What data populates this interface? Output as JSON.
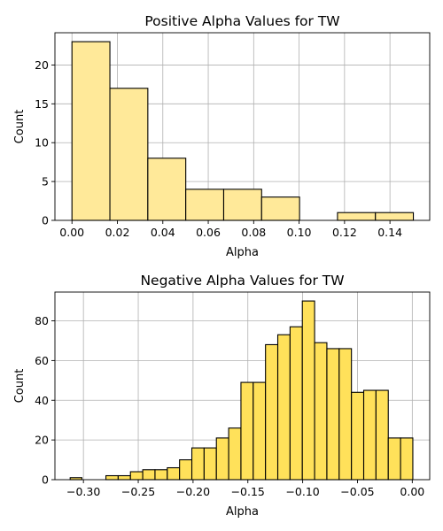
{
  "chart_data": [
    {
      "type": "bar",
      "title": "Positive Alpha Values for TW",
      "xlabel": "Alpha",
      "ylabel": "Count",
      "xlim": [
        -0.0075,
        0.1575
      ],
      "ylim": [
        0,
        24.15
      ],
      "xticks": [
        0.0,
        0.02,
        0.04,
        0.06,
        0.08,
        0.1,
        0.12,
        0.14
      ],
      "xtick_labels": [
        "0.00",
        "0.02",
        "0.04",
        "0.06",
        "0.08",
        "0.10",
        "0.12",
        "0.14"
      ],
      "yticks": [
        0,
        5,
        10,
        15,
        20
      ],
      "ytick_labels": [
        "0",
        "5",
        "10",
        "15",
        "20"
      ],
      "grid": true,
      "fill_color": "#ffe999",
      "bins": [
        {
          "x0": 0.0,
          "x1": 0.0167,
          "count": 23
        },
        {
          "x0": 0.0167,
          "x1": 0.0334,
          "count": 17
        },
        {
          "x0": 0.0334,
          "x1": 0.0501,
          "count": 8
        },
        {
          "x0": 0.0501,
          "x1": 0.0668,
          "count": 4
        },
        {
          "x0": 0.0668,
          "x1": 0.0835,
          "count": 4
        },
        {
          "x0": 0.0835,
          "x1": 0.1002,
          "count": 3
        },
        {
          "x0": 0.1002,
          "x1": 0.1169,
          "count": 0
        },
        {
          "x0": 0.1169,
          "x1": 0.1336,
          "count": 1
        },
        {
          "x0": 0.1336,
          "x1": 0.1503,
          "count": 1
        }
      ]
    },
    {
      "type": "bar",
      "title": "Negative Alpha Values for TW",
      "xlabel": "Alpha",
      "ylabel": "Count",
      "xlim": [
        -0.326,
        0.0159
      ],
      "ylim": [
        0,
        94.5
      ],
      "xticks": [
        -0.3,
        -0.25,
        -0.2,
        -0.15,
        -0.1,
        -0.05,
        0.0
      ],
      "xtick_labels": [
        "−0.30",
        "−0.25",
        "−0.20",
        "−0.15",
        "−0.10",
        "−0.05",
        "0.00"
      ],
      "yticks": [
        0,
        20,
        40,
        60,
        80
      ],
      "ytick_labels": [
        "0",
        "20",
        "40",
        "60",
        "80"
      ],
      "grid": true,
      "fill_color": "#ffe15a",
      "bins": [
        {
          "x0": -0.3121,
          "x1": -0.3014,
          "count": 1
        },
        {
          "x0": -0.3014,
          "x1": -0.2898,
          "count": 0
        },
        {
          "x0": -0.2898,
          "x1": -0.2795,
          "count": 0
        },
        {
          "x0": -0.2795,
          "x1": -0.2683,
          "count": 2
        },
        {
          "x0": -0.2683,
          "x1": -0.2571,
          "count": 2
        },
        {
          "x0": -0.2571,
          "x1": -0.2459,
          "count": 4
        },
        {
          "x0": -0.2459,
          "x1": -0.2347,
          "count": 5
        },
        {
          "x0": -0.2347,
          "x1": -0.2235,
          "count": 5
        },
        {
          "x0": -0.2235,
          "x1": -0.2123,
          "count": 6
        },
        {
          "x0": -0.2123,
          "x1": -0.2011,
          "count": 10
        },
        {
          "x0": -0.2011,
          "x1": -0.1899,
          "count": 16
        },
        {
          "x0": -0.1899,
          "x1": -0.1787,
          "count": 16
        },
        {
          "x0": -0.1787,
          "x1": -0.1675,
          "count": 21
        },
        {
          "x0": -0.1675,
          "x1": -0.1563,
          "count": 26
        },
        {
          "x0": -0.1563,
          "x1": -0.1451,
          "count": 49
        },
        {
          "x0": -0.1451,
          "x1": -0.1339,
          "count": 49
        },
        {
          "x0": -0.1339,
          "x1": -0.1227,
          "count": 68
        },
        {
          "x0": -0.1227,
          "x1": -0.1115,
          "count": 73
        },
        {
          "x0": -0.1115,
          "x1": -0.1003,
          "count": 77
        },
        {
          "x0": -0.1003,
          "x1": -0.0891,
          "count": 90
        },
        {
          "x0": -0.0891,
          "x1": -0.0779,
          "count": 69
        },
        {
          "x0": -0.0779,
          "x1": -0.0667,
          "count": 66
        },
        {
          "x0": -0.0667,
          "x1": -0.0555,
          "count": 66
        },
        {
          "x0": -0.0555,
          "x1": -0.0443,
          "count": 44
        },
        {
          "x0": -0.0443,
          "x1": -0.0331,
          "count": 45
        },
        {
          "x0": -0.0331,
          "x1": -0.0219,
          "count": 45
        },
        {
          "x0": -0.0219,
          "x1": -0.0107,
          "count": 21
        },
        {
          "x0": -0.0107,
          "x1": 0.0005,
          "count": 21
        }
      ]
    }
  ]
}
